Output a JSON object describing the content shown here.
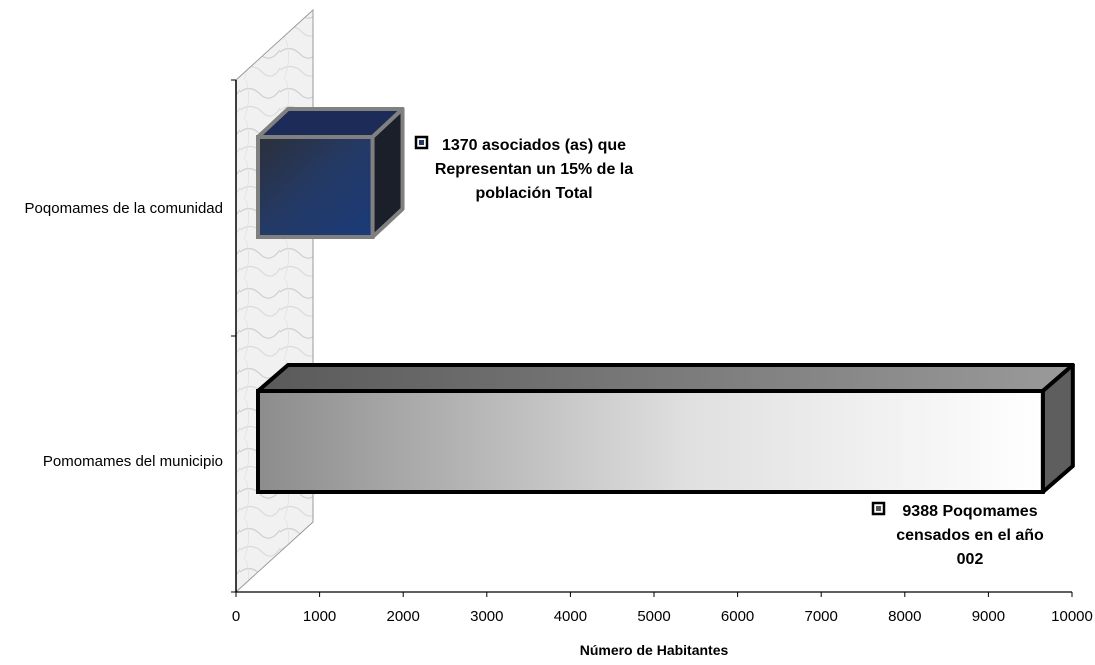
{
  "chart_data": {
    "type": "bar",
    "orientation": "horizontal",
    "style": "3d",
    "categories": [
      "Poqomames de la comunidad",
      "Pomomames del municipio"
    ],
    "series": [
      {
        "name": "1370 asociados (as) que Representan un 15% de la población Total",
        "values": [
          1370,
          null
        ],
        "color": "#1f3864"
      },
      {
        "name": "9388 Poqomames censados en el año 2002",
        "values": [
          null,
          9388
        ],
        "color": "#d9d9d9"
      }
    ],
    "xlabel": "Número de Habitantes",
    "ylabel": "",
    "xlim": [
      0,
      10000
    ],
    "ticks": [
      "0",
      "1000",
      "2000",
      "3000",
      "4000",
      "5000",
      "6000",
      "7000",
      "8000",
      "9000",
      "10000"
    ],
    "legend_placement": "next to bars"
  }
}
